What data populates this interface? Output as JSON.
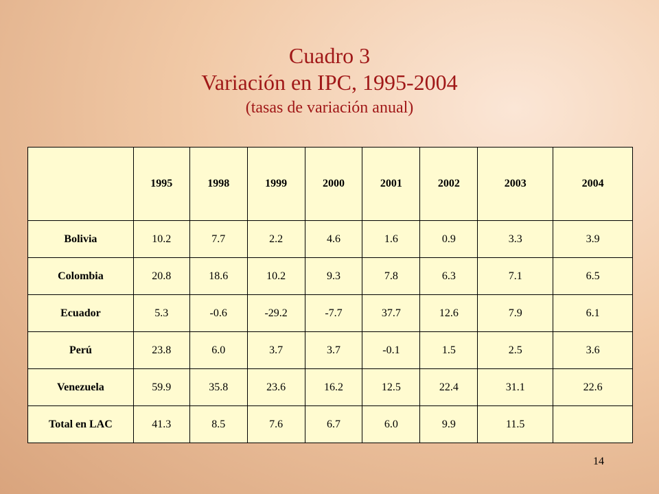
{
  "title": {
    "line1": "Cuadro 3",
    "line2": "Variación  en IPC, 1995-2004",
    "line3": "(tasas de variación anual)"
  },
  "table": {
    "years": [
      "1995",
      "1998",
      "1999",
      "2000",
      "2001",
      "2002",
      "2003",
      "2004"
    ],
    "rows": [
      {
        "label": "Bolivia",
        "values": [
          "10.2",
          "7.7",
          "2.2",
          "4.6",
          "1.6",
          "0.9",
          "3.3",
          "3.9"
        ]
      },
      {
        "label": "Colombia",
        "values": [
          "20.8",
          "18.6",
          "10.2",
          "9.3",
          "7.8",
          "6.3",
          "7.1",
          "6.5"
        ]
      },
      {
        "label": "Ecuador",
        "values": [
          "5.3",
          "-0.6",
          "-29.2",
          "-7.7",
          "37.7",
          "12.6",
          "7.9",
          "6.1"
        ]
      },
      {
        "label": "Perú",
        "values": [
          "23.8",
          "6.0",
          "3.7",
          "3.7",
          "-0.1",
          "1.5",
          "2.5",
          "3.6"
        ]
      },
      {
        "label": "Venezuela",
        "values": [
          "59.9",
          "35.8",
          "23.6",
          "16.2",
          "12.5",
          "22.4",
          "31.1",
          "22.6"
        ]
      },
      {
        "label": "Total en LAC",
        "values": [
          "41.3",
          "8.5",
          "7.6",
          "6.7",
          "6.0",
          "9.9",
          "11.5",
          ""
        ]
      }
    ]
  },
  "page_number": "14"
}
